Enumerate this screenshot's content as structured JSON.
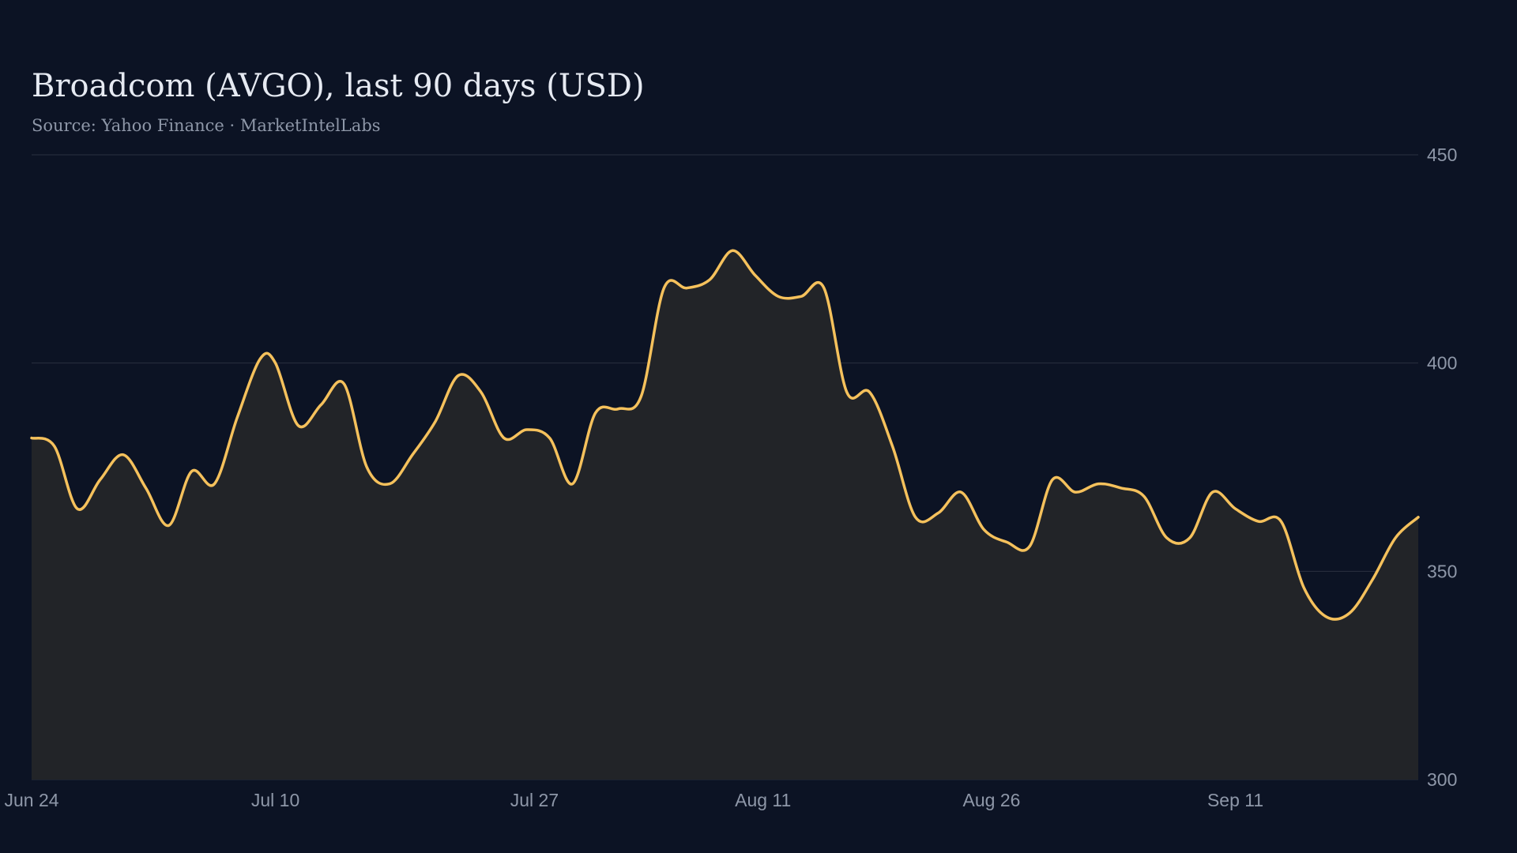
{
  "chart_data": {
    "type": "area",
    "title": "Broadcom (AVGO), last 90 days (USD)",
    "subtitle": "Source: Yahoo Finance · MarketIntelLabs",
    "xlabel": "",
    "ylabel": "",
    "x_ticks": [
      "Jun 24",
      "Jul 10",
      "Jul 27",
      "Aug 11",
      "Aug 26",
      "Sep 11"
    ],
    "x_tick_days": [
      0,
      16,
      33,
      48,
      63,
      79
    ],
    "y_ticks": [
      300,
      350,
      400,
      450
    ],
    "ylim": [
      300,
      450
    ],
    "xlim": [
      0,
      91
    ],
    "grid": "horizontal",
    "colors": {
      "line": "#f5c15c",
      "fill": "#222428",
      "grid": "#2a3140",
      "text": "#8e97a8",
      "background": "#0c1324"
    },
    "series": [
      {
        "days": [
          0,
          1.5,
          3,
          4.5,
          6,
          7.5,
          9,
          10.5,
          12,
          13.5,
          15,
          16,
          17.5,
          19,
          20.5,
          22,
          23.5,
          25,
          26.5,
          28,
          29.5,
          31,
          32.5,
          34,
          35.5,
          37,
          38.5,
          40,
          41.5,
          43,
          44.5,
          46,
          47.5,
          49,
          50.5,
          52,
          53.5,
          55,
          56.5,
          58,
          59.5,
          61,
          62.5,
          64,
          65.5,
          67,
          68.5,
          70,
          71.5,
          73,
          74.5,
          76,
          77.5,
          79,
          80.5,
          82,
          83.5,
          85,
          86.5,
          88,
          89.5,
          91
        ],
        "values": [
          382,
          380,
          365,
          372,
          378,
          370,
          361,
          374,
          371,
          387,
          401,
          400,
          385,
          390,
          395,
          375,
          371,
          378,
          386,
          397,
          393,
          382,
          384,
          382,
          371,
          388,
          389,
          392,
          418,
          418,
          420,
          427,
          421,
          416,
          416,
          418,
          393,
          393,
          380,
          363,
          364,
          369,
          360,
          357,
          356,
          372,
          369,
          371,
          370,
          368,
          358,
          358,
          369,
          365,
          362,
          362,
          346,
          339,
          340,
          348,
          358,
          363
        ]
      }
    ]
  }
}
